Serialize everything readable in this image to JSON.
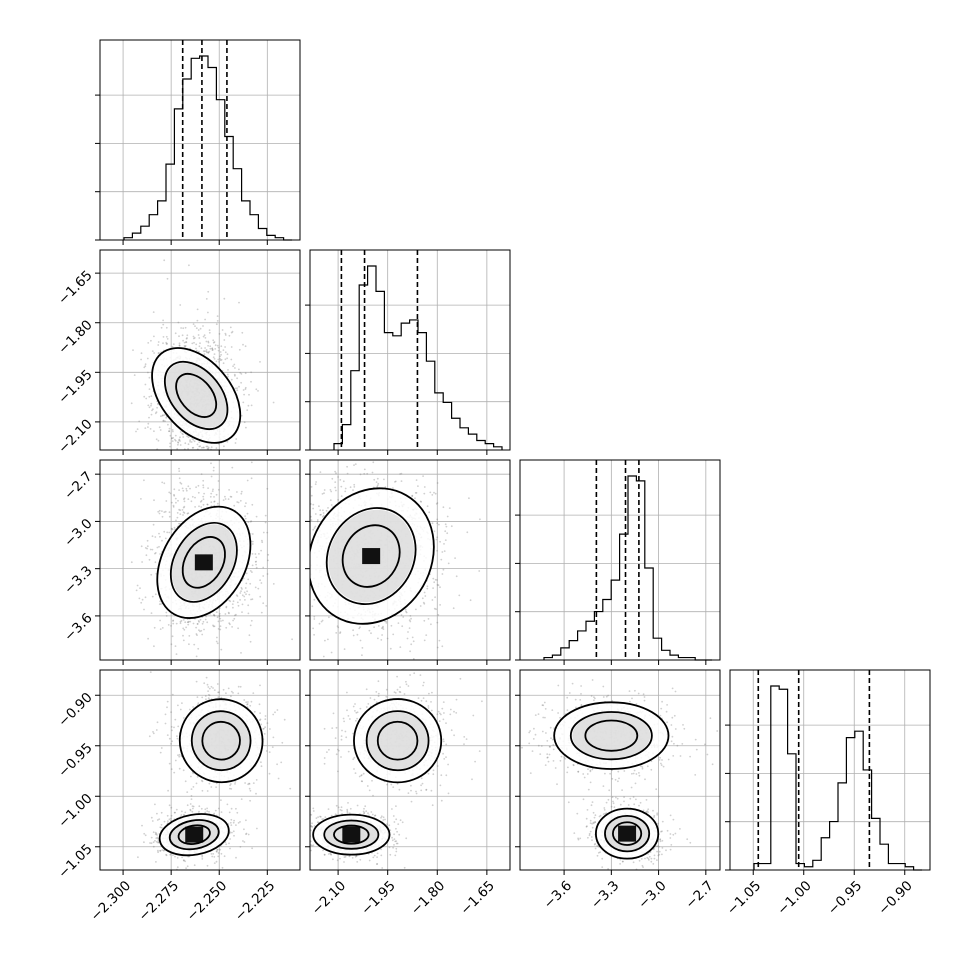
{
  "chart_data": {
    "type": "corner",
    "parameters": [
      {
        "ticks": [
          -2.3,
          -2.275,
          -2.25,
          -2.225
        ],
        "tick_labels": [
          "−2.300",
          "−2.275",
          "−2.250",
          "−2.225"
        ],
        "range": [
          -2.312,
          -2.208
        ],
        "histogram_counts": [
          1,
          3,
          6,
          11,
          17,
          33,
          57,
          70,
          79,
          80,
          75,
          61,
          45,
          31,
          17,
          11,
          5,
          2,
          1,
          0
        ],
        "quantiles": [
          -2.269,
          -2.259,
          -2.246
        ]
      },
      {
        "ticks": [
          -2.1,
          -1.95,
          -1.8,
          -1.65
        ],
        "tick_labels": [
          "−2.10",
          "−1.95",
          "−1.80",
          "−1.65"
        ],
        "range": [
          -2.185,
          -1.58
        ],
        "histogram_counts": [
          2,
          8,
          25,
          52,
          58,
          50,
          37,
          36,
          40,
          41,
          37,
          28,
          18,
          15,
          10,
          7,
          5,
          3,
          2,
          1
        ],
        "quantiles": [
          -2.09,
          -2.02,
          -1.86
        ]
      },
      {
        "ticks": [
          -3.6,
          -3.3,
          -3.0,
          -2.7
        ],
        "tick_labels": [
          "−3.6",
          "−3.3",
          "−3.0",
          "−2.7"
        ],
        "range": [
          -3.88,
          -2.61
        ],
        "histogram_counts": [
          1,
          2,
          5,
          8,
          12,
          16,
          20,
          25,
          33,
          52,
          76,
          74,
          38,
          9,
          4,
          2,
          1,
          1,
          0,
          0
        ],
        "quantiles": [
          -3.395,
          -3.21,
          -3.125
        ]
      },
      {
        "ticks": [
          -1.05,
          -1.0,
          -0.95,
          -0.9
        ],
        "tick_labels": [
          "−1.05",
          "−1.00",
          "−0.95",
          "−0.90"
        ],
        "range": [
          -1.073,
          -0.875
        ],
        "histogram_counts": [
          2,
          2,
          57,
          56,
          36,
          2,
          1,
          3,
          10,
          15,
          27,
          41,
          43,
          31,
          16,
          8,
          2,
          2,
          1,
          0
        ],
        "quantiles": [
          -1.045,
          -1.005,
          -0.935
        ]
      }
    ],
    "grid": true,
    "color": "#000000"
  }
}
